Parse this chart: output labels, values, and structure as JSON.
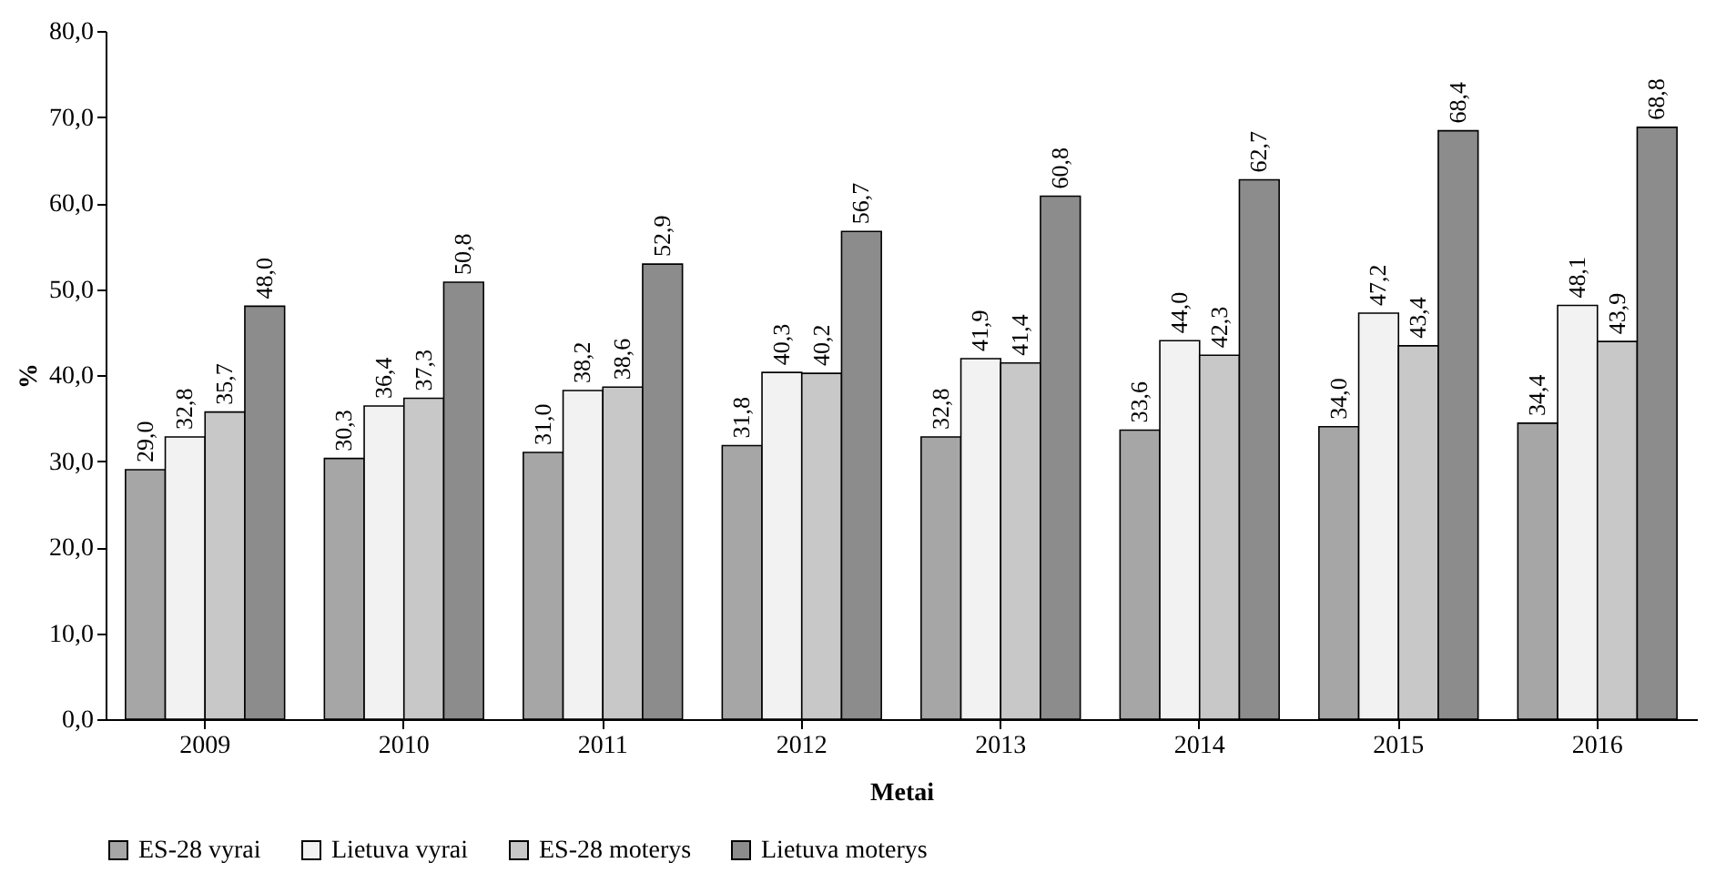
{
  "chart_data": {
    "type": "bar",
    "xlabel": "Metai",
    "ylabel": "%",
    "categories": [
      "2009",
      "2010",
      "2011",
      "2012",
      "2013",
      "2014",
      "2015",
      "2016"
    ],
    "series": [
      {
        "name": "ES-28 vyrai",
        "color": "#a6a6a6",
        "values": [
          29.0,
          30.3,
          31.0,
          31.8,
          32.8,
          33.6,
          34.0,
          34.4
        ],
        "value_labels": [
          "29,0",
          "30,3",
          "31,0",
          "31,8",
          "32,8",
          "33,6",
          "34,0",
          "34,4"
        ]
      },
      {
        "name": "Lietuva vyrai",
        "color": "#f2f2f2",
        "values": [
          32.8,
          36.4,
          38.2,
          40.3,
          41.9,
          44.0,
          47.2,
          48.1
        ],
        "value_labels": [
          "32,8",
          "36,4",
          "38,2",
          "40,3",
          "41,9",
          "44,0",
          "47,2",
          "48,1"
        ]
      },
      {
        "name": "ES-28 moterys",
        "color": "#c8c8c8",
        "values": [
          35.7,
          37.3,
          38.6,
          40.2,
          41.4,
          42.3,
          43.4,
          43.9
        ],
        "value_labels": [
          "35,7",
          "37,3",
          "38,6",
          "40,2",
          "41,4",
          "42,3",
          "43,4",
          "43,9"
        ]
      },
      {
        "name": "Lietuva moterys",
        "color": "#8c8c8c",
        "values": [
          48.0,
          50.8,
          52.9,
          56.7,
          60.8,
          62.7,
          68.4,
          68.8
        ],
        "value_labels": [
          "48,0",
          "50,8",
          "52,9",
          "56,7",
          "60,8",
          "62,7",
          "68,4",
          "68,8"
        ]
      }
    ],
    "ylim": [
      0,
      80
    ],
    "yticks": [
      {
        "value": 0,
        "label": "0,0"
      },
      {
        "value": 10,
        "label": "10,0"
      },
      {
        "value": 20,
        "label": "20,0"
      },
      {
        "value": 30,
        "label": "30,0"
      },
      {
        "value": 40,
        "label": "40,0"
      },
      {
        "value": 50,
        "label": "50,0"
      },
      {
        "value": 60,
        "label": "60,0"
      },
      {
        "value": 70,
        "label": "70,0"
      },
      {
        "value": 80,
        "label": "80,0"
      }
    ],
    "grid": false,
    "legend": "bottom"
  }
}
